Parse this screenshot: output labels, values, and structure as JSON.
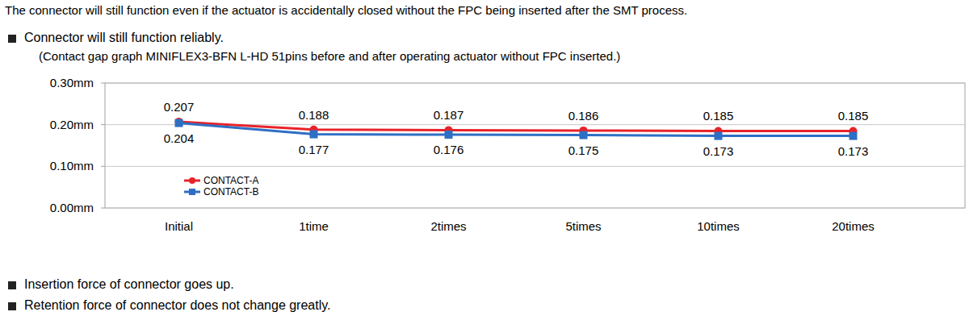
{
  "header": "The connector will still function even if the actuator is accidentally closed without the FPC being inserted after the SMT process.",
  "bullets": [
    "Connector will still function reliably.",
    "Insertion force of connector goes up.",
    "Retention force of connector does not change greatly."
  ],
  "note": "(Contact gap graph MINIFLEX3-BFN L-HD 51pins before and after operating actuator without FPC inserted.)",
  "chart_data": {
    "type": "line",
    "categories": [
      "Initial",
      "1time",
      "2times",
      "5times",
      "10times",
      "20times"
    ],
    "series": [
      {
        "name": "CONTACT-A",
        "color": "#e8232a",
        "marker": "circle",
        "values": [
          0.207,
          0.188,
          0.187,
          0.186,
          0.185,
          0.185
        ]
      },
      {
        "name": "CONTACT-B",
        "color": "#2e6fc4",
        "marker": "square",
        "values": [
          0.204,
          0.177,
          0.176,
          0.175,
          0.173,
          0.173
        ]
      }
    ],
    "ylim": [
      0,
      0.3
    ],
    "yticks": [
      {
        "value": 0,
        "label": "0.00mm"
      },
      {
        "value": 0.1,
        "label": "0.10mm"
      },
      {
        "value": 0.2,
        "label": "0.20mm"
      },
      {
        "value": 0.3,
        "label": "0.30mm"
      }
    ],
    "grid": true,
    "legend": "lower left",
    "data_labels": true
  }
}
